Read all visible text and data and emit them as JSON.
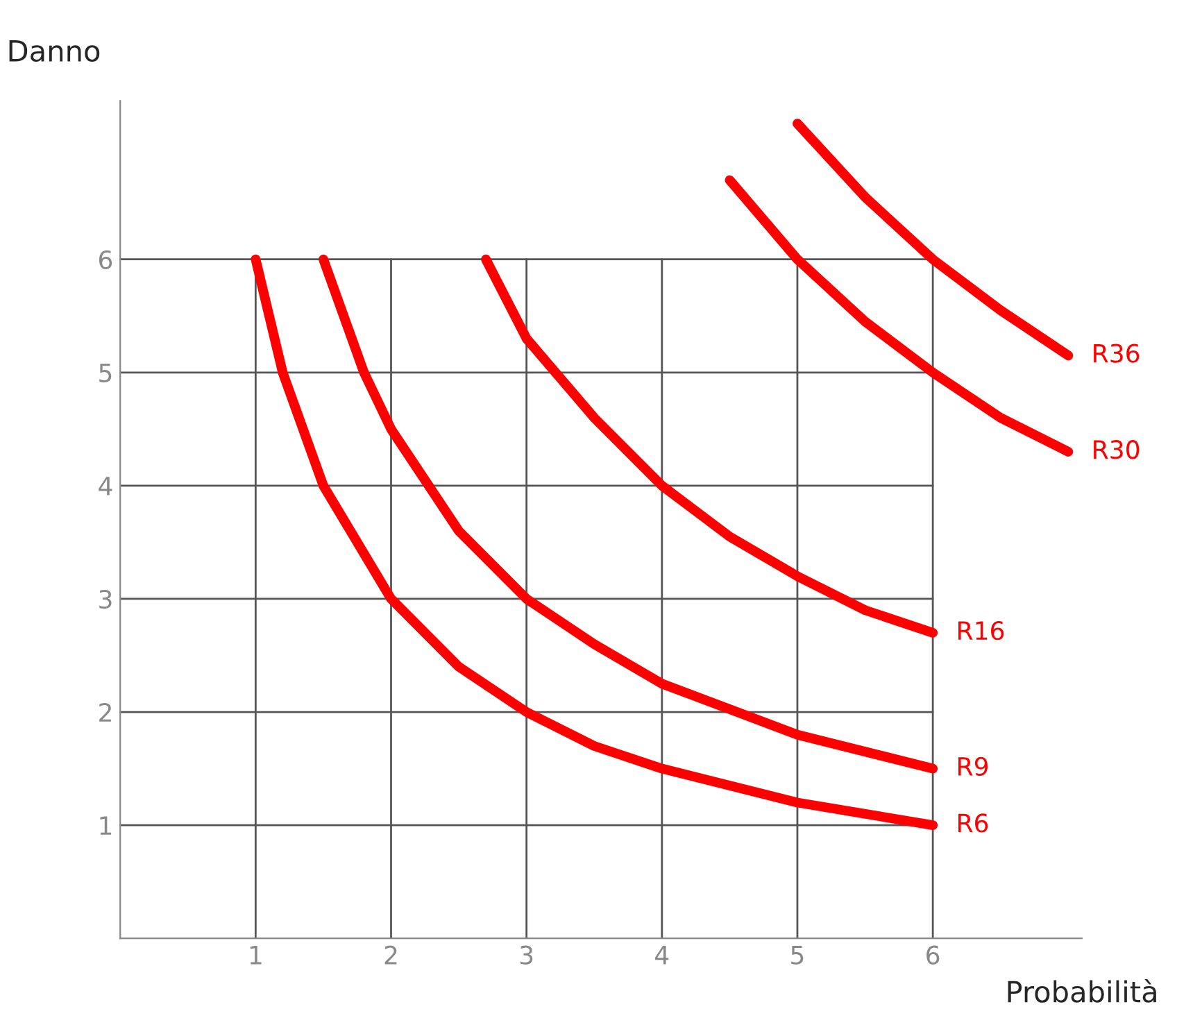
{
  "chart_data": {
    "type": "line",
    "xlabel": "Probabilità",
    "ylabel": "Danno",
    "xlim": [
      0,
      7.1
    ],
    "ylim": [
      0,
      7.4
    ],
    "xticks": [
      1,
      2,
      3,
      4,
      5,
      6
    ],
    "yticks": [
      1,
      2,
      3,
      4,
      5,
      6
    ],
    "grid": true,
    "legend": false,
    "marker": "none",
    "line_style": "solid",
    "series": [
      {
        "name": "R6",
        "color": "#ff0000",
        "x": [
          1,
          1.2,
          1.5,
          2,
          2.5,
          3,
          3.5,
          4,
          5,
          6
        ],
        "values": [
          6,
          5,
          4,
          3,
          2.4,
          2,
          1.7,
          1.5,
          1.2,
          1
        ]
      },
      {
        "name": "R9",
        "color": "#ff0000",
        "x": [
          1.5,
          1.8,
          2,
          2.5,
          3,
          3.5,
          4,
          5,
          6
        ],
        "values": [
          6,
          5,
          4.5,
          3.6,
          3,
          2.6,
          2.25,
          1.8,
          1.5
        ]
      },
      {
        "name": "R16",
        "color": "#ff0000",
        "x": [
          2.7,
          3,
          3.5,
          4,
          4.5,
          5,
          5.5,
          6
        ],
        "values": [
          6,
          5.3,
          4.6,
          4,
          3.55,
          3.2,
          2.9,
          2.7
        ]
      },
      {
        "name": "R30",
        "color": "#ff0000",
        "x": [
          4.5,
          5,
          5.5,
          6,
          6.5,
          7
        ],
        "values": [
          6.7,
          6,
          5.45,
          5,
          4.6,
          4.3
        ]
      },
      {
        "name": "R36",
        "color": "#ff0000",
        "x": [
          5,
          5.5,
          6,
          6.5,
          7
        ],
        "values": [
          7.2,
          6.55,
          6,
          5.55,
          5.15
        ]
      }
    ]
  }
}
